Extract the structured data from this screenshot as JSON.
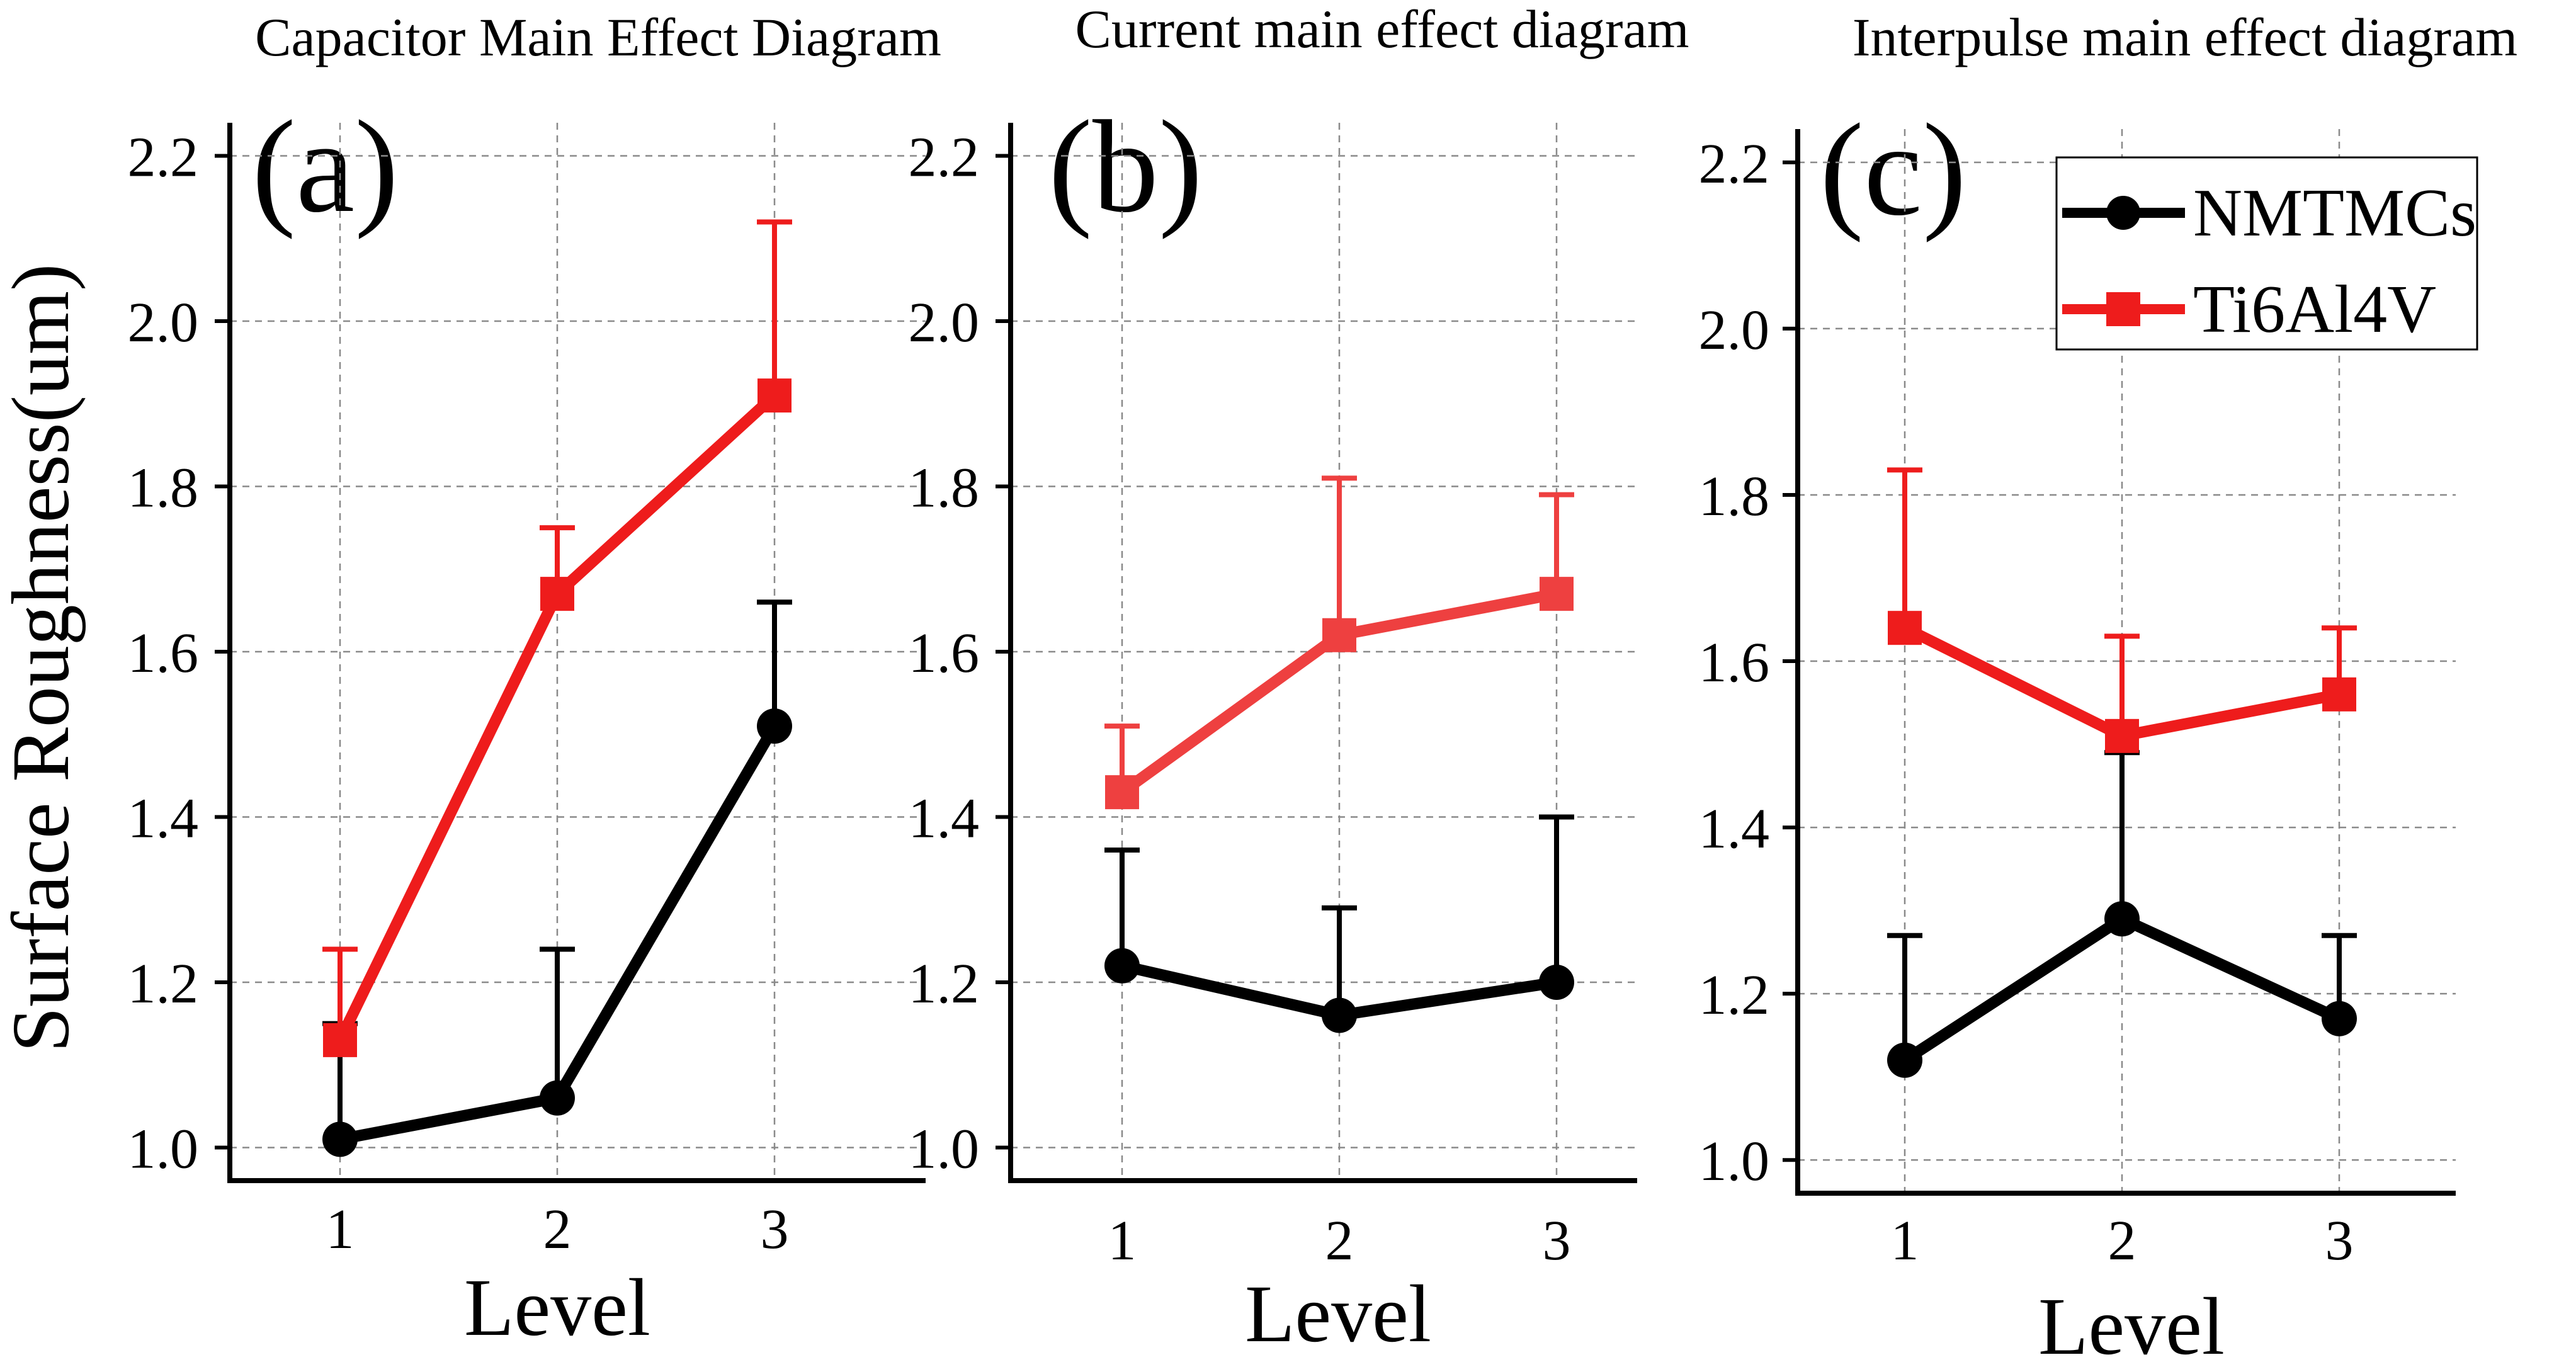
{
  "figure": {
    "y_axis_label": "Surface Roughness(um)"
  },
  "legend": {
    "entries": [
      {
        "label": "NMTMCs",
        "color": "#000000",
        "marker": "circle"
      },
      {
        "label": "Ti6Al4V",
        "color": "#ee1c1c",
        "marker": "square"
      }
    ]
  },
  "chart_data": [
    {
      "type": "line",
      "panel_label": "(a)",
      "title": "Capacitor Main Effect Diagram",
      "xlabel": "Level",
      "ylabel": "Surface Roughness(um)",
      "categories": [
        "1",
        "2",
        "3"
      ],
      "ylim": [
        0.96,
        2.24
      ],
      "yticks": [
        "1.0",
        "1.2",
        "1.4",
        "1.6",
        "1.8",
        "2.0",
        "2.2"
      ],
      "grid": true,
      "series": [
        {
          "name": "NMTMCs",
          "color": "#000000",
          "marker": "circle",
          "values": [
            1.01,
            1.06,
            1.51
          ],
          "error_upper": [
            1.15,
            1.24,
            1.66
          ]
        },
        {
          "name": "Ti6Al4V",
          "color": "#ee1c1c",
          "marker": "square",
          "values": [
            1.13,
            1.67,
            1.91
          ],
          "error_upper": [
            1.24,
            1.75,
            2.12
          ]
        }
      ]
    },
    {
      "type": "line",
      "panel_label": "(b)",
      "title": "Current main effect diagram",
      "xlabel": "Level",
      "ylabel": "Surface Roughness(um)",
      "categories": [
        "1",
        "2",
        "3"
      ],
      "ylim": [
        0.96,
        2.24
      ],
      "yticks": [
        "1.0",
        "1.2",
        "1.4",
        "1.6",
        "1.8",
        "2.0",
        "2.2"
      ],
      "grid": true,
      "series": [
        {
          "name": "NMTMCs",
          "color": "#000000",
          "marker": "circle",
          "values": [
            1.22,
            1.16,
            1.2
          ],
          "error_upper": [
            1.36,
            1.29,
            1.4
          ]
        },
        {
          "name": "Ti6Al4V",
          "color": "#ee4040",
          "marker": "square",
          "values": [
            1.43,
            1.62,
            1.67
          ],
          "error_upper": [
            1.51,
            1.81,
            1.79
          ]
        }
      ]
    },
    {
      "type": "line",
      "panel_label": "(c)",
      "title": "Interpulse main effect diagram",
      "xlabel": "Level",
      "ylabel": "Surface Roughness(um)",
      "categories": [
        "1",
        "2",
        "3"
      ],
      "ylim": [
        0.96,
        2.24
      ],
      "yticks": [
        "1.0",
        "1.2",
        "1.4",
        "1.6",
        "1.8",
        "2.0",
        "2.2"
      ],
      "grid": true,
      "series": [
        {
          "name": "NMTMCs",
          "color": "#000000",
          "marker": "circle",
          "values": [
            1.12,
            1.29,
            1.17
          ],
          "error_upper": [
            1.27,
            1.49,
            1.27
          ]
        },
        {
          "name": "Ti6Al4V",
          "color": "#ee1c1c",
          "marker": "square",
          "values": [
            1.64,
            1.51,
            1.56
          ],
          "error_upper": [
            1.83,
            1.63,
            1.64
          ]
        }
      ]
    }
  ]
}
